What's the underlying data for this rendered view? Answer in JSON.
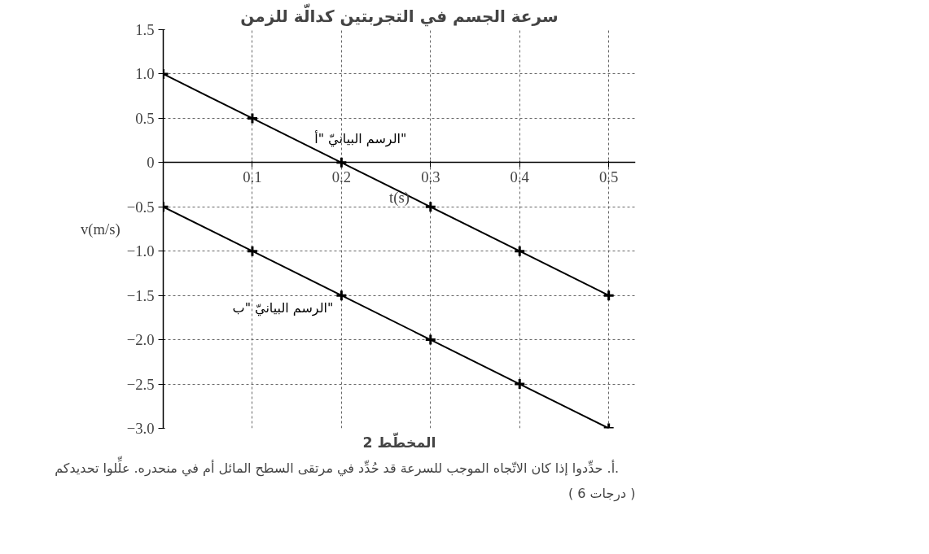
{
  "chart_data": {
    "type": "line",
    "title": "سرعة الجسم في التجربتين كدالّة للزمن",
    "xlabel": "t(s)",
    "ylabel": "v(m/s)",
    "x": [
      0,
      0.1,
      0.2,
      0.3,
      0.4,
      0.5
    ],
    "series": [
      {
        "name": "الرسم البيانيّ \"أ\"",
        "color": "#000000",
        "values": [
          1.0,
          0.5,
          0,
          -0.5,
          -1.0,
          -1.5
        ]
      },
      {
        "name": "الرسم البيانيّ \"ب\"",
        "color": "#000000",
        "values": [
          -0.5,
          -1.0,
          -1.5,
          -2.0,
          -2.5,
          -3.0
        ]
      }
    ],
    "xlim": [
      0,
      0.53
    ],
    "ylim": [
      -3.0,
      1.5
    ],
    "xticks": [
      0.1,
      0.2,
      0.3,
      0.4,
      0.5
    ],
    "yticks": [
      1.5,
      {
        "value": 1.0,
        "label": "1.0"
      },
      0.5,
      0,
      {
        "value": -0.5,
        "label": "−0.5"
      },
      {
        "value": -1.0,
        "label": "−1.0"
      },
      {
        "value": -1.5,
        "label": "−1.5"
      },
      {
        "value": -2.0,
        "label": "−2.0"
      },
      {
        "value": -2.5,
        "label": "−2.5"
      },
      {
        "value": -3.0,
        "label": "−3.0"
      }
    ],
    "grid": true,
    "marker": "cross",
    "line_style": "solid",
    "annotations": [
      "المخطّط 2",
      "أ.    حدِّدوا إذا كان الاتّجاه الموجب للسرعة قد حُدِّد في مرتقى السطح المائل أم في منحدره.  علِّلوا تحديدكم.",
      "( 6 درجات )"
    ]
  }
}
